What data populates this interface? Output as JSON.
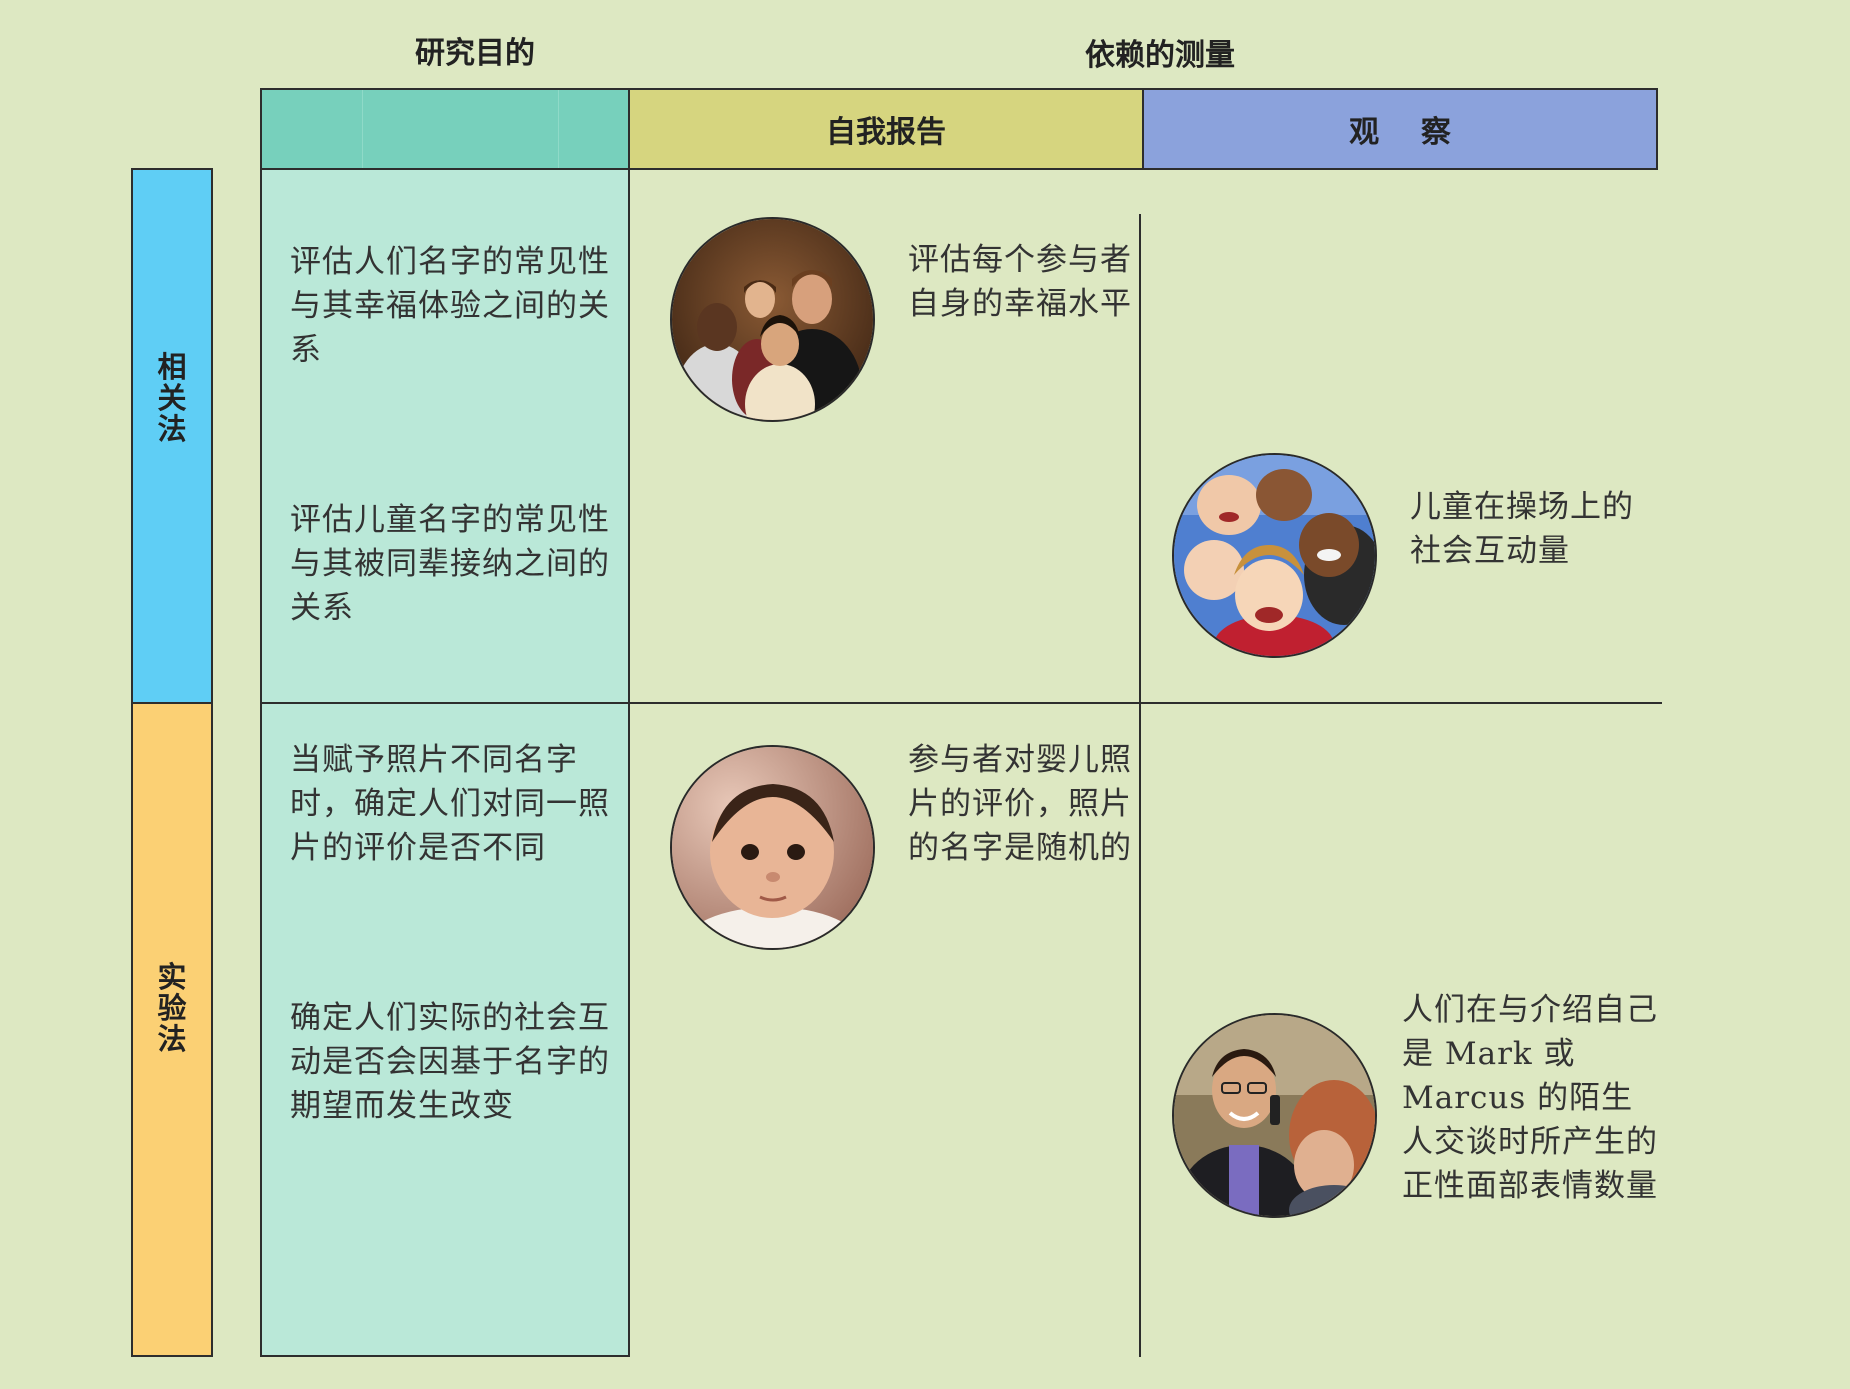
{
  "headers": {
    "purpose": "研究目的",
    "measure": "依赖的测量",
    "self_report": "自我报告",
    "observation": "观    察"
  },
  "methods": {
    "correlational": [
      "相",
      "关",
      "法"
    ],
    "experimental": [
      "实",
      "验",
      "法"
    ]
  },
  "purposes": {
    "p1": "评估人们名字的常见性与其幸福体验之间的关系",
    "p2": "评估儿童名字的常见性与其被同辈接纳之间的关系",
    "p3": "当赋予照片不同名字时，确定人们对同一照片的评价是否不同",
    "p4": "确定人们实际的社会互动是否会因基于名字的期望而发生改变"
  },
  "measures": {
    "m1": "评估每个参与者自身的幸福水平",
    "m2": "儿童在操场上的社会互动量",
    "m3": "参与者对婴儿照片的评价，照片的名字是随机的",
    "m4": "人们在与介绍自己是 Mark 或 Marcus 的陌生人交谈时所产生的正性面部表情数量"
  },
  "colors": {
    "background": "#dde8c2",
    "purpose_header": "#77d0bc",
    "purpose_column": "#bae8d8",
    "self_report_header": "#d6d57f",
    "observation_header": "#8ba2dc",
    "correlational_bar": "#5fcef5",
    "experimental_bar": "#fbd074"
  },
  "photos": [
    "group-photo",
    "children-photo",
    "baby-photo",
    "conversation-photo"
  ]
}
